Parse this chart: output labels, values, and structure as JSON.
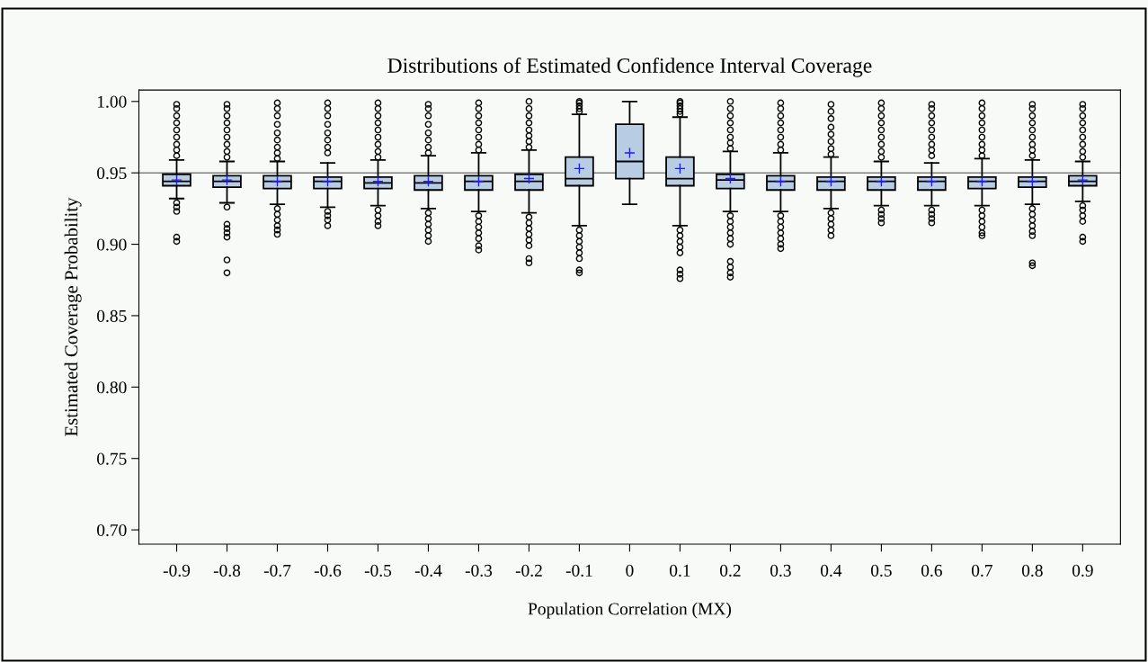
{
  "chart_data": {
    "type": "box",
    "title": "Distributions of Estimated Confidence Interval Coverage",
    "xlabel": "Population Correlation (MX)",
    "ylabel": "Estimated Coverage Probability",
    "categories": [
      "-0.9",
      "-0.8",
      "-0.7",
      "-0.6",
      "-0.5",
      "-0.4",
      "-0.3",
      "-0.2",
      "-0.1",
      "0",
      "0.1",
      "0.2",
      "0.3",
      "0.4",
      "0.5",
      "0.6",
      "0.7",
      "0.8",
      "0.9"
    ],
    "color": "#b8cce4",
    "ylim": [
      0.69,
      1.008
    ],
    "yticks": [
      {
        "value": 0.7,
        "label": "0.70"
      },
      {
        "value": 0.75,
        "label": "0.75"
      },
      {
        "value": 0.8,
        "label": "0.80"
      },
      {
        "value": 0.85,
        "label": "0.85"
      },
      {
        "value": 0.9,
        "label": "0.90"
      },
      {
        "value": 0.95,
        "label": "0.95"
      },
      {
        "value": 1.0,
        "label": "1.00"
      }
    ],
    "grid": false,
    "ref_lines": [
      {
        "axis": "y",
        "value": 0.95,
        "color": "#808080"
      }
    ],
    "boxes": [
      {
        "low": 0.932,
        "q1": 0.941,
        "median": 0.944,
        "q3": 0.949,
        "high": 0.959,
        "mean": 0.945,
        "outliers": [
          0.962,
          0.966,
          0.97,
          0.975,
          0.98,
          0.985,
          0.99,
          0.995,
          0.998,
          0.929,
          0.926,
          0.923,
          0.905,
          0.902
        ]
      },
      {
        "low": 0.929,
        "q1": 0.94,
        "median": 0.944,
        "q3": 0.948,
        "high": 0.958,
        "mean": 0.945,
        "outliers": [
          0.961,
          0.965,
          0.97,
          0.975,
          0.98,
          0.985,
          0.99,
          0.995,
          0.998,
          0.926,
          0.914,
          0.911,
          0.908,
          0.905,
          0.889,
          0.88
        ]
      },
      {
        "low": 0.928,
        "q1": 0.939,
        "median": 0.944,
        "q3": 0.948,
        "high": 0.958,
        "mean": 0.944,
        "outliers": [
          0.96,
          0.964,
          0.968,
          0.973,
          0.978,
          0.984,
          0.99,
          0.995,
          0.999,
          0.925,
          0.921,
          0.917,
          0.913,
          0.91,
          0.907
        ]
      },
      {
        "low": 0.926,
        "q1": 0.939,
        "median": 0.944,
        "q3": 0.947,
        "high": 0.957,
        "mean": 0.944,
        "outliers": [
          0.964,
          0.968,
          0.973,
          0.978,
          0.984,
          0.99,
          0.995,
          0.999,
          0.923,
          0.92,
          0.917,
          0.913
        ]
      },
      {
        "low": 0.927,
        "q1": 0.939,
        "median": 0.943,
        "q3": 0.947,
        "high": 0.959,
        "mean": 0.944,
        "outliers": [
          0.961,
          0.965,
          0.97,
          0.975,
          0.98,
          0.985,
          0.99,
          0.995,
          0.999,
          0.924,
          0.92,
          0.916,
          0.913
        ]
      },
      {
        "low": 0.925,
        "q1": 0.938,
        "median": 0.943,
        "q3": 0.948,
        "high": 0.962,
        "mean": 0.944,
        "outliers": [
          0.964,
          0.968,
          0.973,
          0.978,
          0.984,
          0.99,
          0.995,
          0.998,
          0.922,
          0.918,
          0.914,
          0.91,
          0.906,
          0.902
        ]
      },
      {
        "low": 0.923,
        "q1": 0.938,
        "median": 0.944,
        "q3": 0.948,
        "high": 0.964,
        "mean": 0.944,
        "outliers": [
          0.966,
          0.97,
          0.975,
          0.98,
          0.985,
          0.99,
          0.995,
          0.999,
          0.92,
          0.916,
          0.912,
          0.908,
          0.904,
          0.899,
          0.896
        ]
      },
      {
        "low": 0.922,
        "q1": 0.938,
        "median": 0.944,
        "q3": 0.949,
        "high": 0.966,
        "mean": 0.946,
        "outliers": [
          0.968,
          0.972,
          0.976,
          0.98,
          0.985,
          0.99,
          0.995,
          1.0,
          0.919,
          0.915,
          0.911,
          0.907,
          0.903,
          0.899,
          0.89,
          0.887
        ]
      },
      {
        "low": 0.913,
        "q1": 0.941,
        "median": 0.946,
        "q3": 0.961,
        "high": 0.991,
        "mean": 0.953,
        "outliers": [
          0.993,
          0.995,
          0.997,
          0.999,
          1.0,
          0.91,
          0.906,
          0.902,
          0.898,
          0.894,
          0.89,
          0.882,
          0.88
        ]
      },
      {
        "low": 0.928,
        "q1": 0.946,
        "median": 0.958,
        "q3": 0.984,
        "high": 1.0,
        "mean": 0.964
      },
      {
        "low": 0.913,
        "q1": 0.941,
        "median": 0.946,
        "q3": 0.961,
        "high": 0.989,
        "mean": 0.953,
        "outliers": [
          0.991,
          0.993,
          0.995,
          0.997,
          0.999,
          1.0,
          0.91,
          0.906,
          0.902,
          0.898,
          0.894,
          0.882,
          0.879,
          0.876
        ]
      },
      {
        "low": 0.923,
        "q1": 0.939,
        "median": 0.945,
        "q3": 0.949,
        "high": 0.965,
        "mean": 0.946,
        "outliers": [
          0.967,
          0.971,
          0.975,
          0.98,
          0.985,
          0.99,
          0.995,
          1.0,
          0.92,
          0.916,
          0.912,
          0.908,
          0.904,
          0.9,
          0.888,
          0.884,
          0.88,
          0.877
        ]
      },
      {
        "low": 0.923,
        "q1": 0.938,
        "median": 0.944,
        "q3": 0.948,
        "high": 0.964,
        "mean": 0.944,
        "outliers": [
          0.966,
          0.97,
          0.975,
          0.98,
          0.985,
          0.99,
          0.995,
          0.999,
          0.92,
          0.916,
          0.912,
          0.908,
          0.904,
          0.9,
          0.897
        ]
      },
      {
        "low": 0.925,
        "q1": 0.938,
        "median": 0.944,
        "q3": 0.947,
        "high": 0.961,
        "mean": 0.944,
        "outliers": [
          0.963,
          0.967,
          0.972,
          0.977,
          0.982,
          0.988,
          0.993,
          0.998,
          0.922,
          0.918,
          0.914,
          0.91,
          0.906
        ]
      },
      {
        "low": 0.927,
        "q1": 0.938,
        "median": 0.944,
        "q3": 0.947,
        "high": 0.958,
        "mean": 0.944,
        "outliers": [
          0.961,
          0.965,
          0.97,
          0.975,
          0.98,
          0.985,
          0.99,
          0.995,
          0.999,
          0.924,
          0.921,
          0.918,
          0.915
        ]
      },
      {
        "low": 0.927,
        "q1": 0.938,
        "median": 0.944,
        "q3": 0.947,
        "high": 0.957,
        "mean": 0.944,
        "outliers": [
          0.962,
          0.966,
          0.97,
          0.975,
          0.98,
          0.985,
          0.99,
          0.995,
          0.998,
          0.924,
          0.921,
          0.918,
          0.915
        ]
      },
      {
        "low": 0.927,
        "q1": 0.939,
        "median": 0.944,
        "q3": 0.947,
        "high": 0.96,
        "mean": 0.944,
        "outliers": [
          0.962,
          0.966,
          0.97,
          0.975,
          0.98,
          0.985,
          0.99,
          0.995,
          0.999,
          0.924,
          0.92,
          0.916,
          0.912,
          0.908,
          0.906
        ]
      },
      {
        "low": 0.928,
        "q1": 0.94,
        "median": 0.944,
        "q3": 0.947,
        "high": 0.959,
        "mean": 0.944,
        "outliers": [
          0.962,
          0.966,
          0.97,
          0.975,
          0.98,
          0.985,
          0.99,
          0.995,
          0.998,
          0.925,
          0.921,
          0.917,
          0.913,
          0.909,
          0.906,
          0.887,
          0.885
        ]
      },
      {
        "low": 0.93,
        "q1": 0.941,
        "median": 0.944,
        "q3": 0.948,
        "high": 0.958,
        "mean": 0.945,
        "outliers": [
          0.961,
          0.965,
          0.97,
          0.975,
          0.98,
          0.985,
          0.99,
          0.995,
          0.998,
          0.927,
          0.924,
          0.92,
          0.916,
          0.905,
          0.902
        ]
      }
    ]
  }
}
